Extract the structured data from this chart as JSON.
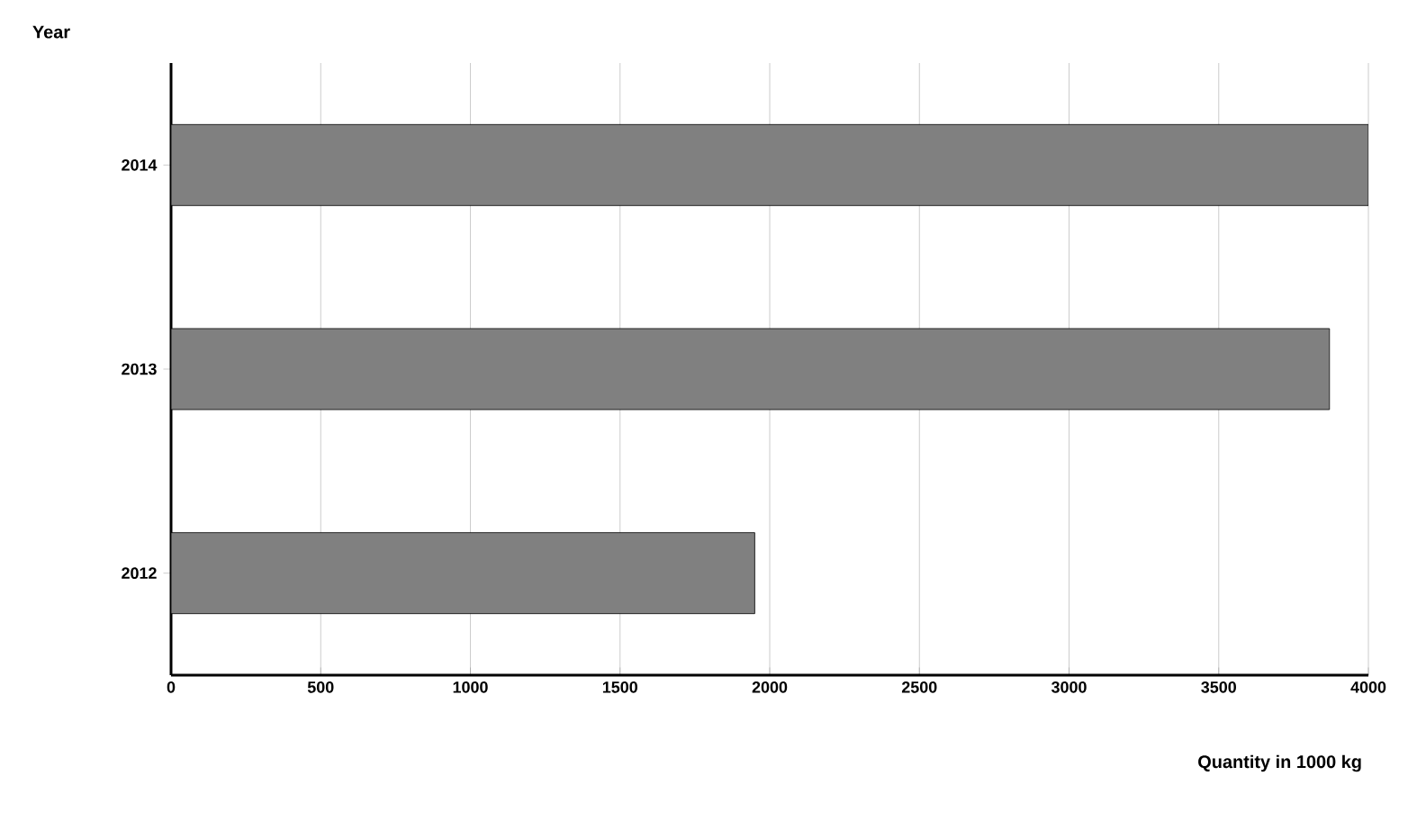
{
  "chart_data": {
    "type": "bar",
    "orientation": "horizontal",
    "xlabel": "Quantity in 1000 kg",
    "ylabel": "Year",
    "categories": [
      "2014",
      "2013",
      "2012"
    ],
    "values": [
      4000,
      3870,
      1950
    ],
    "color": "#808080",
    "xlim": [
      0,
      4000
    ],
    "xticks": [
      0,
      500,
      1000,
      1500,
      2000,
      2500,
      3000,
      3500,
      4000
    ],
    "grid": "x"
  }
}
